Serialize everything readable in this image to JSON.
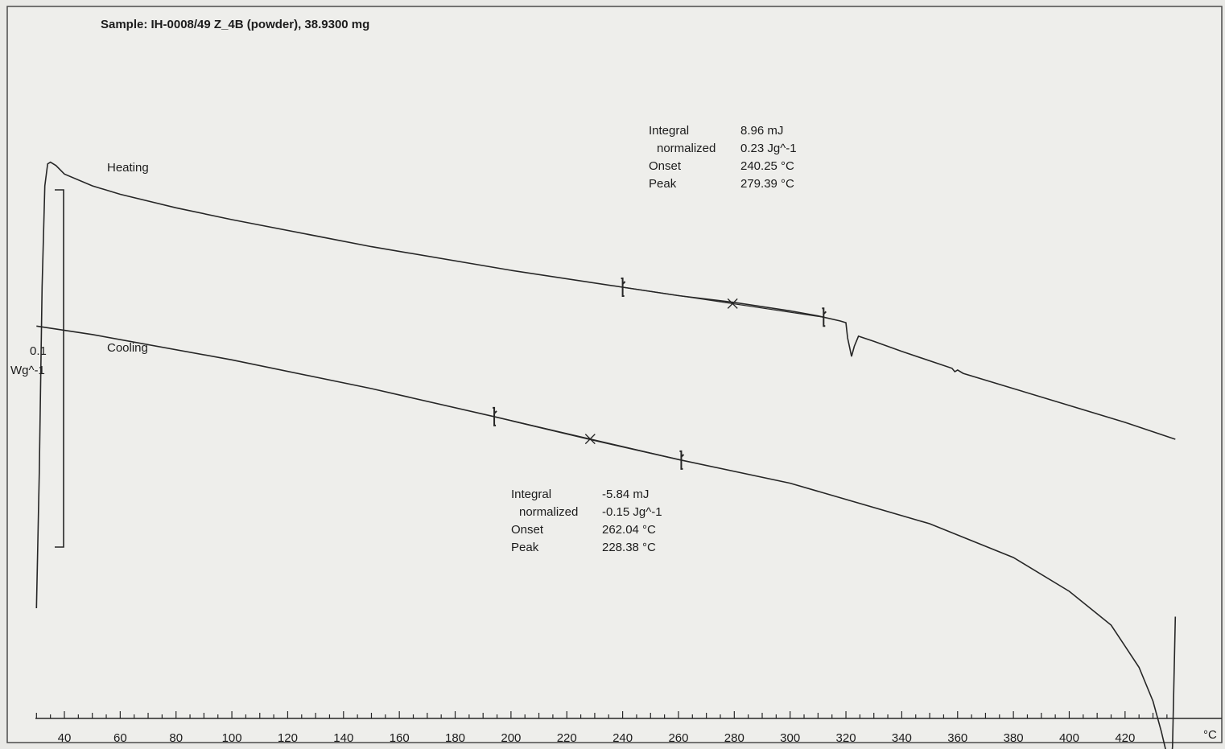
{
  "chart_data": {
    "type": "line",
    "title": "Sample: IH-0008/49 Z_4B (powder), 38.9300 mg",
    "x_unit": "°C",
    "xlim": [
      30,
      438
    ],
    "x_ticks": [
      40,
      60,
      80,
      100,
      120,
      140,
      160,
      180,
      200,
      220,
      240,
      260,
      280,
      300,
      320,
      340,
      360,
      380,
      400,
      420
    ],
    "scale_bar": {
      "value": "0.1",
      "unit": "Wg^-1"
    },
    "series": [
      {
        "name": "Heating",
        "x": [
          30,
          31,
          32,
          33,
          34,
          35,
          37,
          40,
          50,
          60,
          80,
          100,
          150,
          200,
          240,
          260,
          280,
          300,
          310,
          318,
          320,
          320.6,
          322,
          323,
          324.5,
          330,
          340,
          358,
          359,
          360,
          362,
          380,
          400,
          420,
          438
        ],
        "y": [
          -1.4,
          -0.6,
          0.5,
          1.1,
          1.23,
          1.24,
          1.22,
          1.17,
          1.1,
          1.05,
          0.97,
          0.9,
          0.74,
          0.6,
          0.5,
          0.45,
          0.41,
          0.36,
          0.33,
          0.3,
          0.29,
          0.2,
          0.09,
          0.15,
          0.21,
          0.18,
          0.12,
          0.02,
          0.0,
          0.01,
          -0.01,
          -0.1,
          -0.2,
          -0.3,
          -0.4
        ]
      },
      {
        "name": "Cooling",
        "x": [
          30,
          50,
          100,
          150,
          195,
          228,
          260,
          300,
          350,
          380,
          400,
          415,
          425,
          430,
          433,
          435,
          436.3,
          437,
          438
        ],
        "y": [
          0.27,
          0.22,
          0.07,
          -0.1,
          -0.27,
          -0.4,
          -0.52,
          -0.66,
          -0.9,
          -1.1,
          -1.3,
          -1.5,
          -1.75,
          -1.95,
          -2.13,
          -2.27,
          -2.34,
          -2.22,
          -1.45
        ]
      }
    ],
    "annotations": [
      {
        "series": "Heating",
        "rows": [
          {
            "label": "Integral",
            "value": "8.96 mJ"
          },
          {
            "label": "normalized",
            "value": "0.23 Jg^-1"
          },
          {
            "label": "Onset",
            "value": "240.25 °C"
          },
          {
            "label": "Peak",
            "value": "279.39 °C"
          }
        ],
        "limits": [
          240,
          312
        ],
        "peak": 279.39
      },
      {
        "series": "Cooling",
        "rows": [
          {
            "label": "Integral",
            "value": "-5.84 mJ"
          },
          {
            "label": "normalized",
            "value": "-0.15 Jg^-1"
          },
          {
            "label": "Onset",
            "value": "262.04 °C"
          },
          {
            "label": "Peak",
            "value": "228.38 °C"
          }
        ],
        "limits": [
          194,
          261
        ],
        "peak": 228.38
      }
    ]
  }
}
